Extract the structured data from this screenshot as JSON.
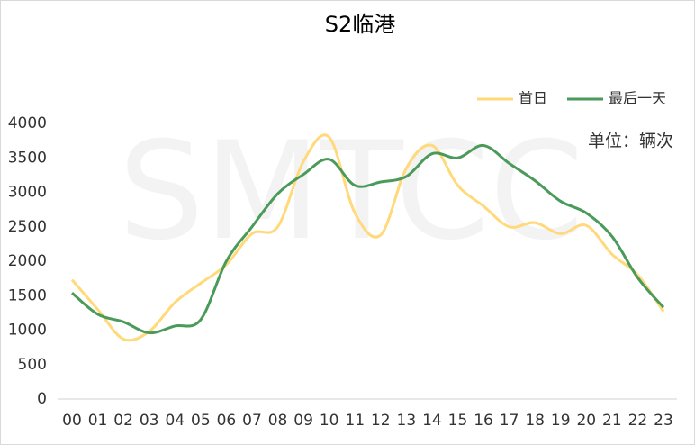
{
  "chart_data": {
    "type": "line",
    "title": "S2临港",
    "unit_label": "单位：辆次",
    "watermark": "SMTCC",
    "categories": [
      "00",
      "01",
      "02",
      "03",
      "04",
      "05",
      "06",
      "07",
      "08",
      "09",
      "10",
      "11",
      "12",
      "13",
      "14",
      "15",
      "16",
      "17",
      "18",
      "19",
      "20",
      "21",
      "22",
      "23"
    ],
    "series": [
      {
        "name": "首日",
        "color": "#ffd97a",
        "values": [
          1730,
          1300,
          870,
          980,
          1400,
          1680,
          1950,
          2400,
          2500,
          3450,
          3800,
          2700,
          2380,
          3350,
          3680,
          3100,
          2800,
          2500,
          2560,
          2400,
          2520,
          2100,
          1800,
          1270
        ]
      },
      {
        "name": "最后一天",
        "color": "#4a9a5a",
        "values": [
          1540,
          1230,
          1120,
          960,
          1060,
          1150,
          2000,
          2500,
          2980,
          3260,
          3480,
          3100,
          3150,
          3230,
          3560,
          3500,
          3680,
          3420,
          3170,
          2870,
          2700,
          2360,
          1760,
          1330
        ]
      }
    ],
    "ylim": [
      0,
      4000
    ],
    "yticks": [
      0,
      500,
      1000,
      1500,
      2000,
      2500,
      3000,
      3500,
      4000
    ],
    "grid": false,
    "legend": "top-right"
  }
}
